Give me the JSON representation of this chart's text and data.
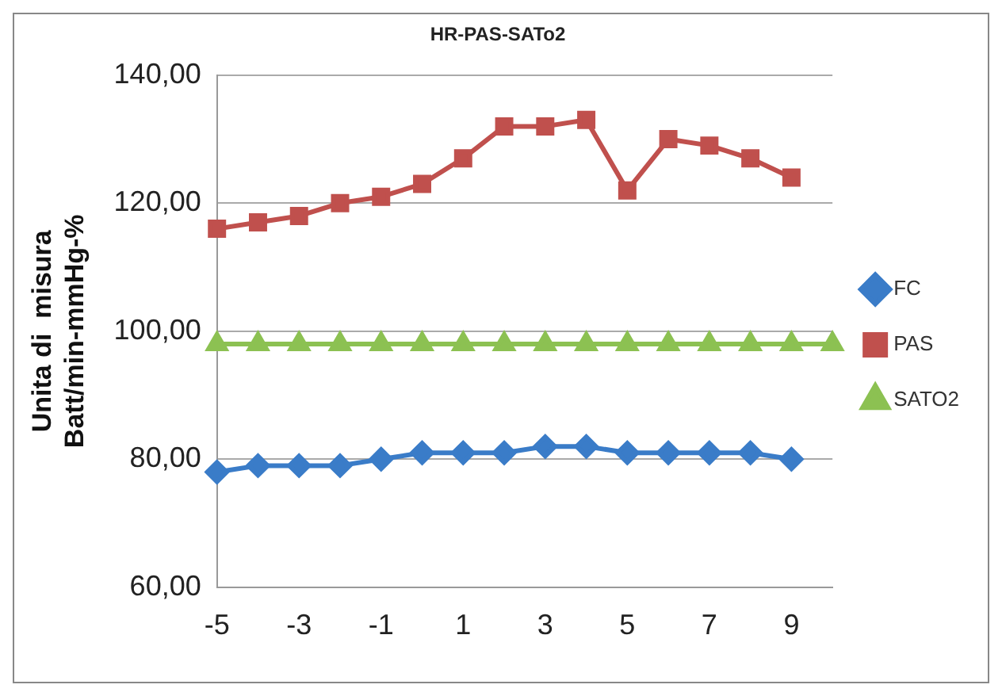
{
  "chart_data": {
    "type": "line",
    "title": "HR-PAS-SATo2",
    "ylabel": "Unita di  misura\nBatt/min-mmHg-%",
    "categories": [
      "-5",
      null,
      "-3",
      null,
      "-1",
      null,
      "1",
      null,
      "3",
      null,
      "5",
      null,
      "7",
      null,
      "9",
      null
    ],
    "series": [
      {
        "name": "FC",
        "color": "#3a7cc8",
        "marker": "diamond",
        "values": [
          78,
          79,
          79,
          79,
          80,
          81,
          81,
          81,
          82,
          82,
          81,
          81,
          81,
          81,
          80,
          null
        ]
      },
      {
        "name": "PAS",
        "color": "#c0504d",
        "marker": "square",
        "values": [
          116,
          117,
          118,
          120,
          121,
          123,
          127,
          132,
          132,
          133,
          122,
          130,
          129,
          127,
          124,
          null
        ]
      },
      {
        "name": "SATO2",
        "color": "#8cc152",
        "marker": "triangle",
        "values": [
          98,
          98,
          98,
          98,
          98,
          98,
          98,
          98,
          98,
          98,
          98,
          98,
          98,
          98,
          98,
          98
        ]
      }
    ],
    "ylim": [
      60,
      140
    ],
    "yticks": [
      {
        "value": 60,
        "label": "60,00"
      },
      {
        "value": 80,
        "label": "80,00"
      },
      {
        "value": 100,
        "label": "100,00"
      },
      {
        "value": 120,
        "label": "120,00"
      },
      {
        "value": 140,
        "label": "140,00"
      }
    ],
    "grid": "y",
    "legend": "right",
    "line_style": "solid"
  }
}
